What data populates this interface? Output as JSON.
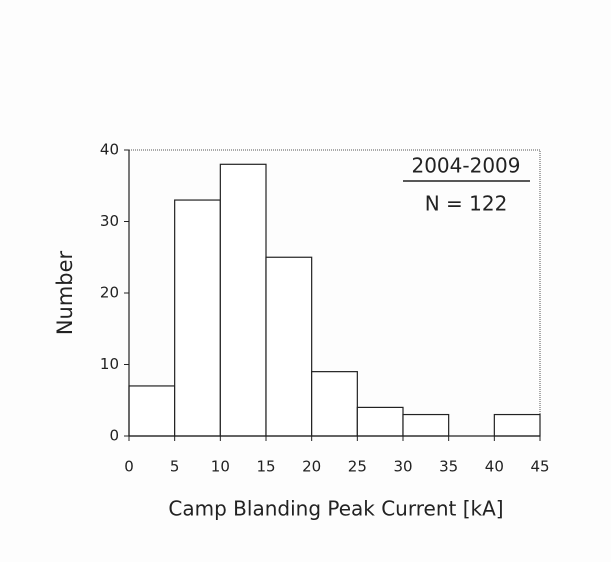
{
  "chart_data": {
    "type": "histogram",
    "xlabel": "Camp Blanding Peak Current [kA]",
    "ylabel": "Number",
    "annotations": [
      "2004-2009",
      "N = 122"
    ],
    "bins": [
      0,
      5,
      10,
      15,
      20,
      25,
      30,
      35,
      40,
      45
    ],
    "values": [
      7,
      33,
      38,
      25,
      9,
      4,
      3,
      0,
      3
    ],
    "color": "#ffffff",
    "xlim": [
      0,
      45
    ],
    "xticks": [
      0,
      5,
      10,
      15,
      20,
      25,
      30,
      35,
      40,
      45
    ],
    "ylim": [
      0,
      40
    ],
    "yticks": [
      0,
      10,
      20,
      30,
      40
    ],
    "grid": false
  }
}
